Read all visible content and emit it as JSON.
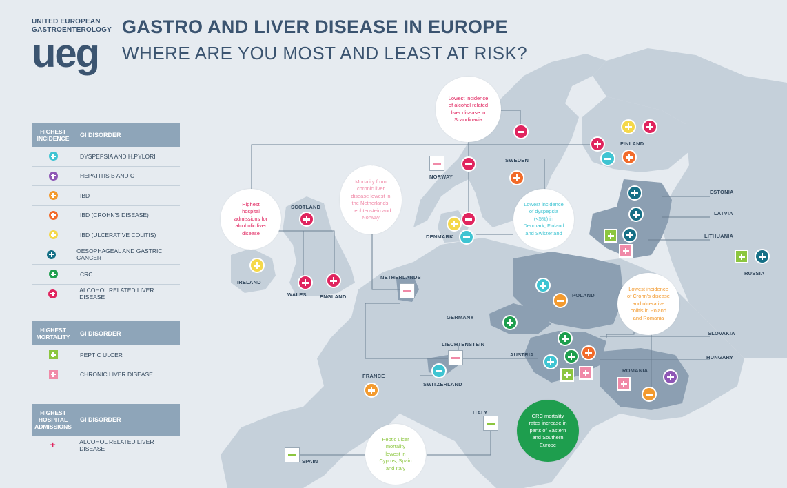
{
  "logo": {
    "line1": "UNITED EUROPEAN",
    "line2": "GASTROENTEROLOGY",
    "mark": "ueg"
  },
  "title": "GASTRO AND LIVER DISEASE IN EUROPE",
  "subtitle": "WHERE ARE YOU MOST AND LEAST AT RISK?",
  "colors": {
    "dyspepsia": "#3fc4d2",
    "hepatitis": "#8e57b5",
    "ibd": "#f39a2e",
    "crohns": "#f26b2a",
    "uc": "#f5d84a",
    "cancer": "#156f86",
    "crc": "#1e9e4e",
    "alcohol": "#e0245e",
    "peptic": "#8cc63f",
    "chronic": "#f08aa8",
    "highlight": "#8c9fb2",
    "land": "#c5d0da",
    "sea": "#e6ebf0"
  },
  "legend_incidence": {
    "head1": "HIGHEST INCIDENCE",
    "head2": "GI DISORDER",
    "items": [
      {
        "label": "DYSPEPSIA AND H.PYLORI",
        "color_key": "dyspepsia"
      },
      {
        "label": "HEPATITIS B AND C",
        "color_key": "hepatitis"
      },
      {
        "label": "IBD",
        "color_key": "ibd"
      },
      {
        "label": "IBD (CROHN'S DISEASE)",
        "color_key": "crohns"
      },
      {
        "label": "IBD (ULCERATIVE COLITIS)",
        "color_key": "uc"
      },
      {
        "label": "OESOPHAGEAL AND GASTRIC CANCER",
        "color_key": "cancer"
      },
      {
        "label": "CRC",
        "color_key": "crc"
      },
      {
        "label": "ALCOHOL RELATED LIVER DISEASE",
        "color_key": "alcohol"
      }
    ]
  },
  "legend_mortality": {
    "head1": "HIGHEST MORTALITY",
    "head2": "GI DISORDER",
    "items": [
      {
        "label": "PEPTIC ULCER",
        "color_key": "peptic"
      },
      {
        "label": "CHRONIC LIVER DISEASE",
        "color_key": "chronic"
      }
    ]
  },
  "legend_admissions": {
    "head1": "HIGHEST HOSPITAL ADMISSIONS",
    "head2": "GI DISORDER",
    "items": [
      {
        "label": "ALCOHOL RELATED LIVER DISEASE",
        "color_key": "alcohol"
      }
    ]
  },
  "countries": {
    "finland": "FINLAND",
    "sweden": "SWEDEN",
    "norway": "NORWAY",
    "estonia": "ESTONIA",
    "latvia": "LATVIA",
    "lithuania": "LITHUANIA",
    "russia": "RUSSIA",
    "denmark": "DENMARK",
    "scotland": "SCOTLAND",
    "ireland": "IRELAND",
    "wales": "WALES",
    "england": "ENGLAND",
    "netherlands": "NETHERLANDS",
    "poland": "POLAND",
    "germany": "GERMANY",
    "liechtenstein": "LIECHTENSTEIN",
    "slovakia": "SLOVAKIA",
    "austria": "AUSTRIA",
    "hungary": "HUNGARY",
    "switzerland": "SWITZERLAND",
    "france": "FRANCE",
    "romania": "ROMANIA",
    "italy": "ITALY",
    "spain": "SPAIN"
  },
  "callouts": {
    "scandinavia": [
      "Lowest incidence",
      "of alcohol related",
      "liver disease in",
      "Scandinavia"
    ],
    "mortality": [
      "Mortality from",
      "chronic liver",
      "disease lowest in",
      "the Netherlands,",
      "Liechtenstein and",
      "Norway"
    ],
    "hospital": [
      "Highest",
      "hospital",
      "admissions for",
      "alcoholic liver",
      "disease"
    ],
    "dyspepsia": [
      "Lowest incidence",
      "of dyspepsia",
      "(<5%) in",
      "Denmark, Finland",
      "and Switzerland"
    ],
    "crohns": [
      "Lowest incidence",
      "of Crohn's disease",
      "and ulcerative",
      "colitis in Poland",
      "and Romania"
    ],
    "crc": [
      "CRC mortality",
      "rates increase in",
      "parts of Eastern",
      "and Southern",
      "Europe"
    ],
    "peptic": [
      "Peptic ulcer",
      "mortality",
      "lowest in",
      "Cyprus, Spain",
      "and Italy"
    ]
  }
}
